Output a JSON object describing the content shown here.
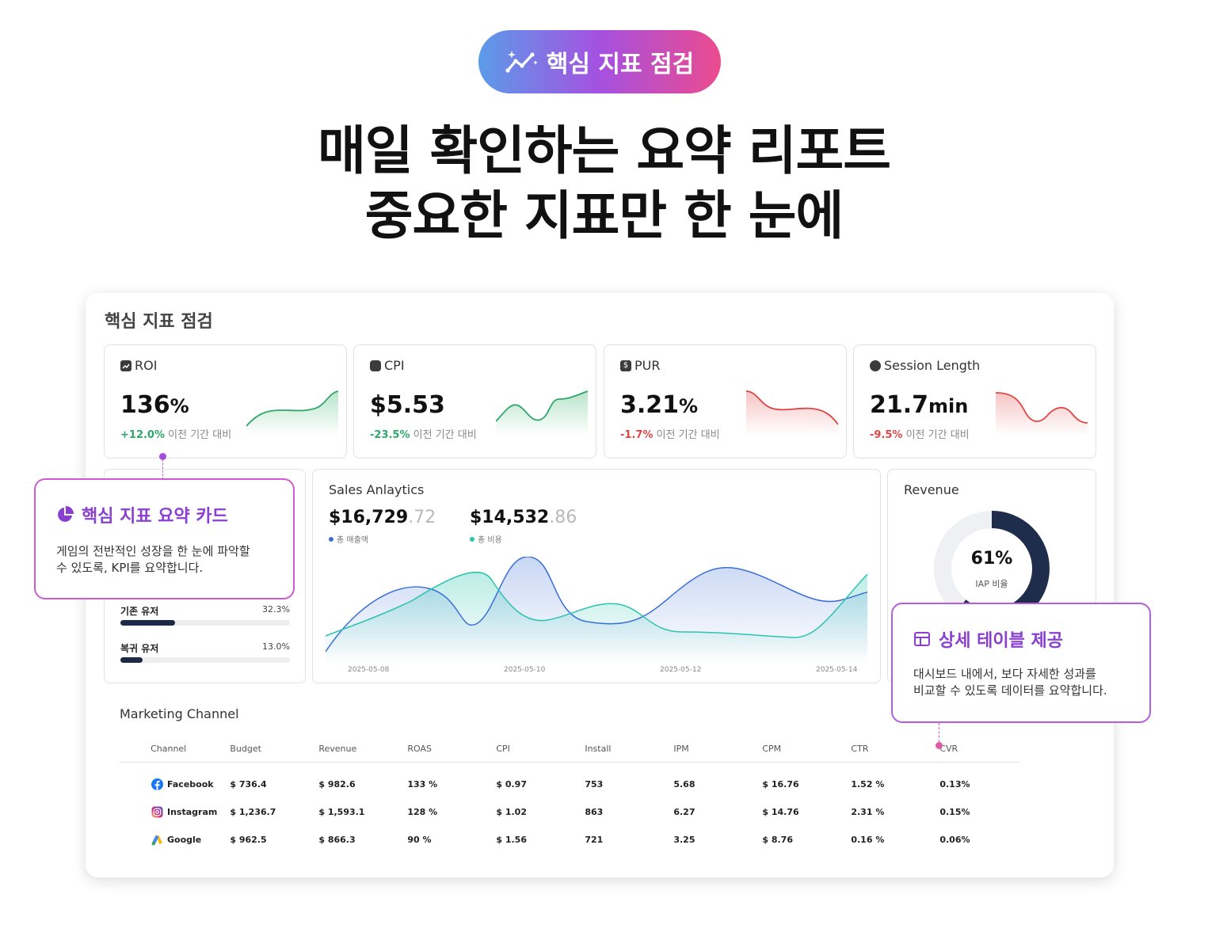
{
  "badge": {
    "label": "핵심 지표 점검",
    "icon": "sparkle-chart-icon"
  },
  "headline": {
    "line1": "매일 확인하는 요약 리포트",
    "line2": "중요한 지표만 한 눈에"
  },
  "dashboard": {
    "title": "핵심 지표 점검",
    "kpis": [
      {
        "label": "ROI",
        "icon": "trend-icon",
        "value": "136",
        "unit": "%",
        "delta": "+12.0%",
        "delta_text": "이전 기간 대비",
        "trend": "up"
      },
      {
        "label": "CPI",
        "icon": "cube-icon",
        "value": "$5.53",
        "unit": "",
        "delta": "-23.5%",
        "delta_text": "이전 기간 대비",
        "trend": "up"
      },
      {
        "label": "PUR",
        "icon": "dollar-icon",
        "value": "3.21",
        "unit": "%",
        "delta": "-1.7%",
        "delta_text": "이전 기간 대비",
        "trend": "down"
      },
      {
        "label": "Session Length",
        "icon": "clock-icon",
        "value": "21.7",
        "unit": "min",
        "delta": "-9.5%",
        "delta_text": "이전 기간 대비",
        "trend": "down"
      }
    ],
    "segments": [
      {
        "name": "기존 유저",
        "pct": "32.3%",
        "fraction": 0.323
      },
      {
        "name": "복귀 유저",
        "pct": "13.0%",
        "fraction": 0.13
      }
    ],
    "sales": {
      "title": "Sales Anlaytics",
      "revenue_main": "$16,729",
      "revenue_dec": ".72",
      "revenue_label": "총 매출액",
      "cost_main": "$14,532",
      "cost_dec": ".86",
      "cost_label": "총 비용",
      "x_ticks": [
        "2025-05-08",
        "2025-05-10",
        "2025-05-12",
        "2025-05-14"
      ],
      "colors": {
        "revenue": "#3b6fd6",
        "cost": "#2cc4b0"
      }
    },
    "revenue": {
      "title": "Revenue",
      "value": "61%",
      "label": "IAP 비율",
      "fraction": 0.61
    },
    "marketing": {
      "title": "Marketing Channel",
      "columns": [
        "Channel",
        "Budget",
        "Revenue",
        "ROAS",
        "CPI",
        "Install",
        "IPM",
        "CPM",
        "CTR",
        "CVR"
      ],
      "rows": [
        {
          "channel": "Facebook",
          "icon": "facebook-icon",
          "budget": "$ 736.4",
          "revenue": "$ 982.6",
          "roas": "133 %",
          "roas_status": "good",
          "cpi": "$ 0.97",
          "install": "753",
          "ipm": "5.68",
          "cpm": "$ 16.76",
          "ctr": "1.52 %",
          "cvr": "0.13%"
        },
        {
          "channel": "Instagram",
          "icon": "instagram-icon",
          "budget": "$ 1,236.7",
          "revenue": "$ 1,593.1",
          "roas": "128 %",
          "roas_status": "good",
          "cpi": "$ 1.02",
          "install": "863",
          "ipm": "6.27",
          "cpm": "$ 14.76",
          "ctr": "2.31 %",
          "cvr": "0.15%"
        },
        {
          "channel": "Google",
          "icon": "google-ads-icon",
          "budget": "$ 962.5",
          "revenue": "$ 866.3",
          "roas": "90 %",
          "roas_status": "bad",
          "cpi": "$ 1.56",
          "install": "721",
          "ipm": "3.25",
          "cpm": "$ 8.76",
          "ctr": "0.16 %",
          "cvr": "0.06%"
        }
      ]
    }
  },
  "callouts": {
    "summary": {
      "title": "핵심 지표 요약 카드",
      "body1": "게임의 전반적인 성장을 한 눈에 파악할",
      "body2": "수 있도록, KPI를 요약합니다.",
      "icon": "pie-chart-icon"
    },
    "table": {
      "title": "상세 테이블 제공",
      "body1": "대시보드 내에서, 보다 자세한 성과를",
      "body2": "비교할 수 있도록 데이터를 요약합니다.",
      "icon": "table-icon"
    }
  }
}
